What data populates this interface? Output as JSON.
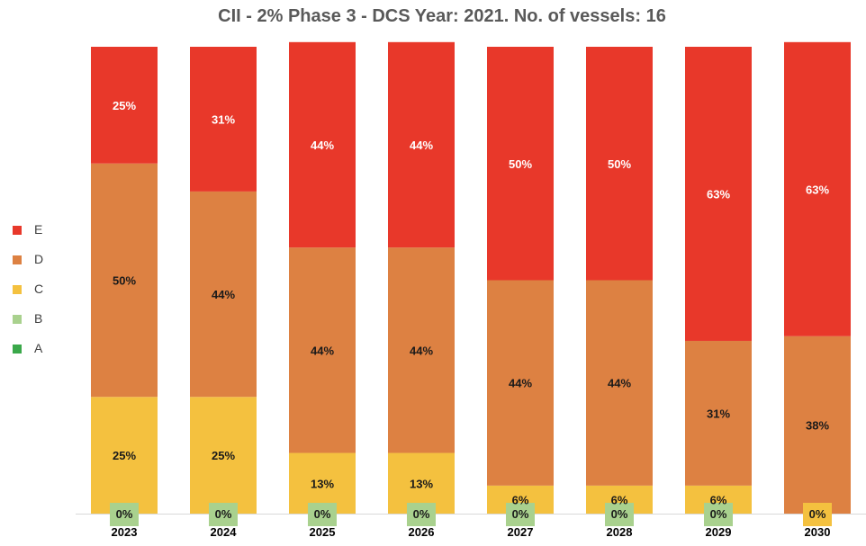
{
  "chart_data": {
    "type": "bar",
    "stacked": true,
    "percent": true,
    "title": "CII - 2% Phase 3 - DCS Year: 2021. No. of vessels: 16",
    "categories": [
      "2023",
      "2024",
      "2025",
      "2026",
      "2027",
      "2028",
      "2029",
      "2030"
    ],
    "series": [
      {
        "name": "A",
        "color": "#3aa84a",
        "values": [
          0,
          0,
          0,
          0,
          0,
          0,
          0,
          0
        ],
        "labels": [
          "",
          "",
          "",
          "",
          "",
          "",
          "",
          ""
        ]
      },
      {
        "name": "B",
        "color": "#a9d18e",
        "values": [
          0,
          0,
          0,
          0,
          0,
          0,
          0,
          0
        ],
        "labels": [
          "0%",
          "0%",
          "0%",
          "0%",
          "0%",
          "0%",
          "0%",
          ""
        ]
      },
      {
        "name": "C",
        "color": "#f4c13f",
        "values": [
          25,
          25,
          13,
          13,
          6,
          6,
          6,
          0
        ],
        "labels": [
          "25%",
          "25%",
          "13%",
          "13%",
          "6%",
          "6%",
          "6%",
          "0%"
        ]
      },
      {
        "name": "D",
        "color": "#dd8142",
        "values": [
          50,
          44,
          44,
          44,
          44,
          44,
          31,
          38
        ],
        "labels": [
          "50%",
          "44%",
          "44%",
          "44%",
          "44%",
          "44%",
          "31%",
          "38%"
        ]
      },
      {
        "name": "E",
        "color": "#e8382a",
        "values": [
          25,
          31,
          44,
          44,
          50,
          50,
          63,
          63
        ],
        "labels": [
          "25%",
          "31%",
          "44%",
          "44%",
          "50%",
          "50%",
          "63%",
          "63%"
        ]
      }
    ],
    "ylim": [
      0,
      100
    ],
    "grid": false,
    "legend_position": "left"
  }
}
